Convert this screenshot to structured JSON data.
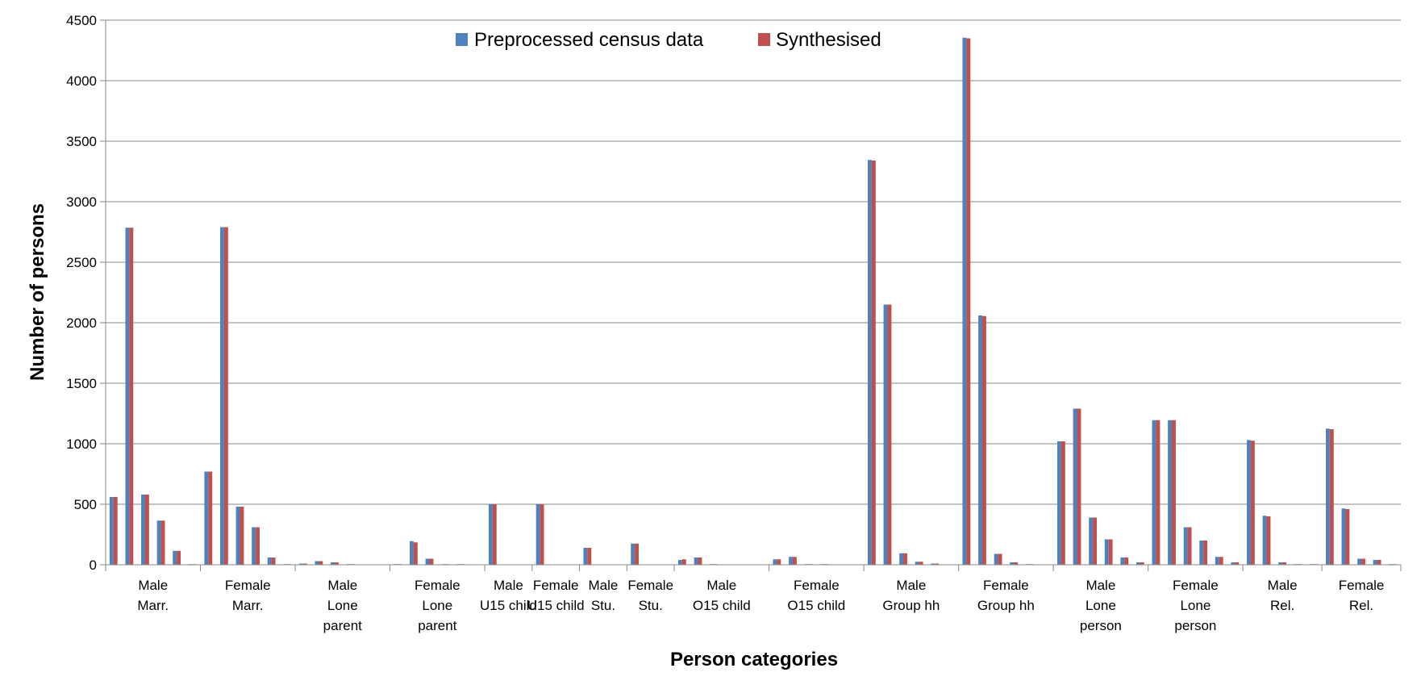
{
  "chart_data": {
    "type": "bar",
    "title": "",
    "xlabel": "Person categories",
    "ylabel": "Number of persons",
    "ylim": [
      0,
      4500
    ],
    "yticks": [
      0,
      500,
      1000,
      1500,
      2000,
      2500,
      3000,
      3500,
      4000,
      4500
    ],
    "grid": true,
    "legend_position": "top-center",
    "groups": [
      {
        "label": [
          "Male",
          "Marr."
        ],
        "count": 6
      },
      {
        "label": [
          "Female",
          "Marr."
        ],
        "count": 6
      },
      {
        "label": [
          "Male",
          "Lone",
          "parent"
        ],
        "count": 6
      },
      {
        "label": [
          "Female",
          "Lone",
          "parent"
        ],
        "count": 6
      },
      {
        "label": [
          "Male",
          "U15 child"
        ],
        "count": 3
      },
      {
        "label": [
          "Female",
          "U15 child"
        ],
        "count": 3
      },
      {
        "label": [
          "Male",
          "Stu."
        ],
        "count": 3
      },
      {
        "label": [
          "Female",
          "Stu."
        ],
        "count": 3
      },
      {
        "label": [
          "Male",
          "O15 child"
        ],
        "count": 6
      },
      {
        "label": [
          "Female",
          "O15 child"
        ],
        "count": 6
      },
      {
        "label": [
          "Male",
          "Group hh"
        ],
        "count": 6
      },
      {
        "label": [
          "Female",
          "Group hh"
        ],
        "count": 6
      },
      {
        "label": [
          "Male",
          "Lone",
          "person"
        ],
        "count": 6
      },
      {
        "label": [
          "Female",
          "Lone",
          "person"
        ],
        "count": 6
      },
      {
        "label": [
          "Male",
          "Rel."
        ],
        "count": 5
      },
      {
        "label": [
          "Female",
          "Rel."
        ],
        "count": 5
      }
    ],
    "series": [
      {
        "name": "Preprocessed census data",
        "color": "#4F81BD",
        "values": [
          560,
          2785,
          580,
          365,
          115,
          5,
          770,
          2790,
          480,
          310,
          60,
          5,
          10,
          30,
          20,
          5,
          0,
          0,
          5,
          195,
          50,
          5,
          5,
          0,
          500,
          0,
          0,
          500,
          0,
          0,
          140,
          0,
          0,
          175,
          0,
          0,
          40,
          60,
          5,
          0,
          0,
          0,
          45,
          65,
          5,
          5,
          0,
          0,
          3345,
          2150,
          95,
          25,
          10,
          0,
          4355,
          2060,
          90,
          20,
          5,
          0,
          1020,
          1290,
          390,
          210,
          60,
          20,
          1195,
          1195,
          310,
          200,
          65,
          20,
          1030,
          405,
          20,
          5,
          5,
          1125,
          465,
          50,
          40,
          5
        ]
      },
      {
        "name": "Synthesised",
        "color": "#C0504D",
        "values": [
          560,
          2785,
          580,
          365,
          115,
          5,
          770,
          2790,
          480,
          310,
          60,
          5,
          10,
          30,
          20,
          5,
          0,
          0,
          5,
          185,
          50,
          5,
          5,
          0,
          500,
          0,
          0,
          500,
          0,
          0,
          140,
          0,
          0,
          175,
          0,
          0,
          45,
          60,
          5,
          0,
          0,
          0,
          45,
          65,
          5,
          5,
          0,
          0,
          3340,
          2150,
          95,
          25,
          10,
          0,
          4350,
          2055,
          90,
          20,
          5,
          0,
          1020,
          1290,
          390,
          210,
          60,
          20,
          1195,
          1195,
          310,
          200,
          65,
          20,
          1025,
          400,
          20,
          5,
          5,
          1120,
          460,
          50,
          40,
          5
        ]
      }
    ]
  }
}
